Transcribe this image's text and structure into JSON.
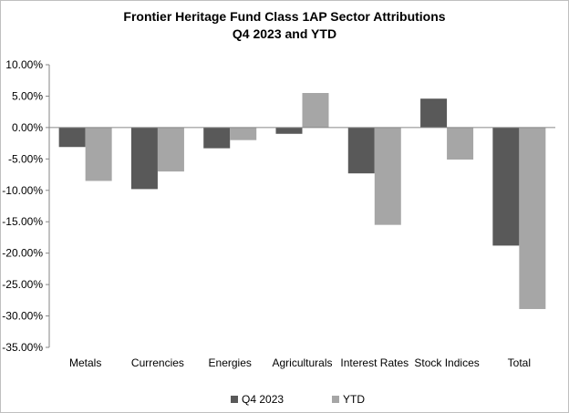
{
  "chart_data": {
    "type": "bar",
    "title": "Frontier Heritage Fund Class 1AP Sector Attributions",
    "subtitle": "Q4 2023 and YTD",
    "xlabel": "",
    "ylabel": "",
    "categories": [
      "Metals",
      "Currencies",
      "Energies",
      "Agriculturals",
      "Interest Rates",
      "Stock Indices",
      "Total"
    ],
    "series": [
      {
        "name": "Q4 2023",
        "color": "#595959",
        "values": [
          -3.1,
          -9.8,
          -3.3,
          -1.0,
          -7.3,
          4.6,
          -18.8
        ]
      },
      {
        "name": "YTD",
        "color": "#a6a6a6",
        "values": [
          -8.5,
          -7.0,
          -2.0,
          5.5,
          -15.5,
          -5.1,
          -28.9
        ]
      }
    ],
    "ylim": [
      -35,
      10
    ],
    "yticks": [
      10,
      5,
      0,
      -5,
      -10,
      -15,
      -20,
      -25,
      -30,
      -35
    ],
    "ytick_labels": [
      "10.00%",
      "5.00%",
      "0.00%",
      "-5.00%",
      "-10.00%",
      "-15.00%",
      "-20.00%",
      "-25.00%",
      "-30.00%",
      "-35.00%"
    ],
    "grid": false,
    "legend": "bottom"
  }
}
